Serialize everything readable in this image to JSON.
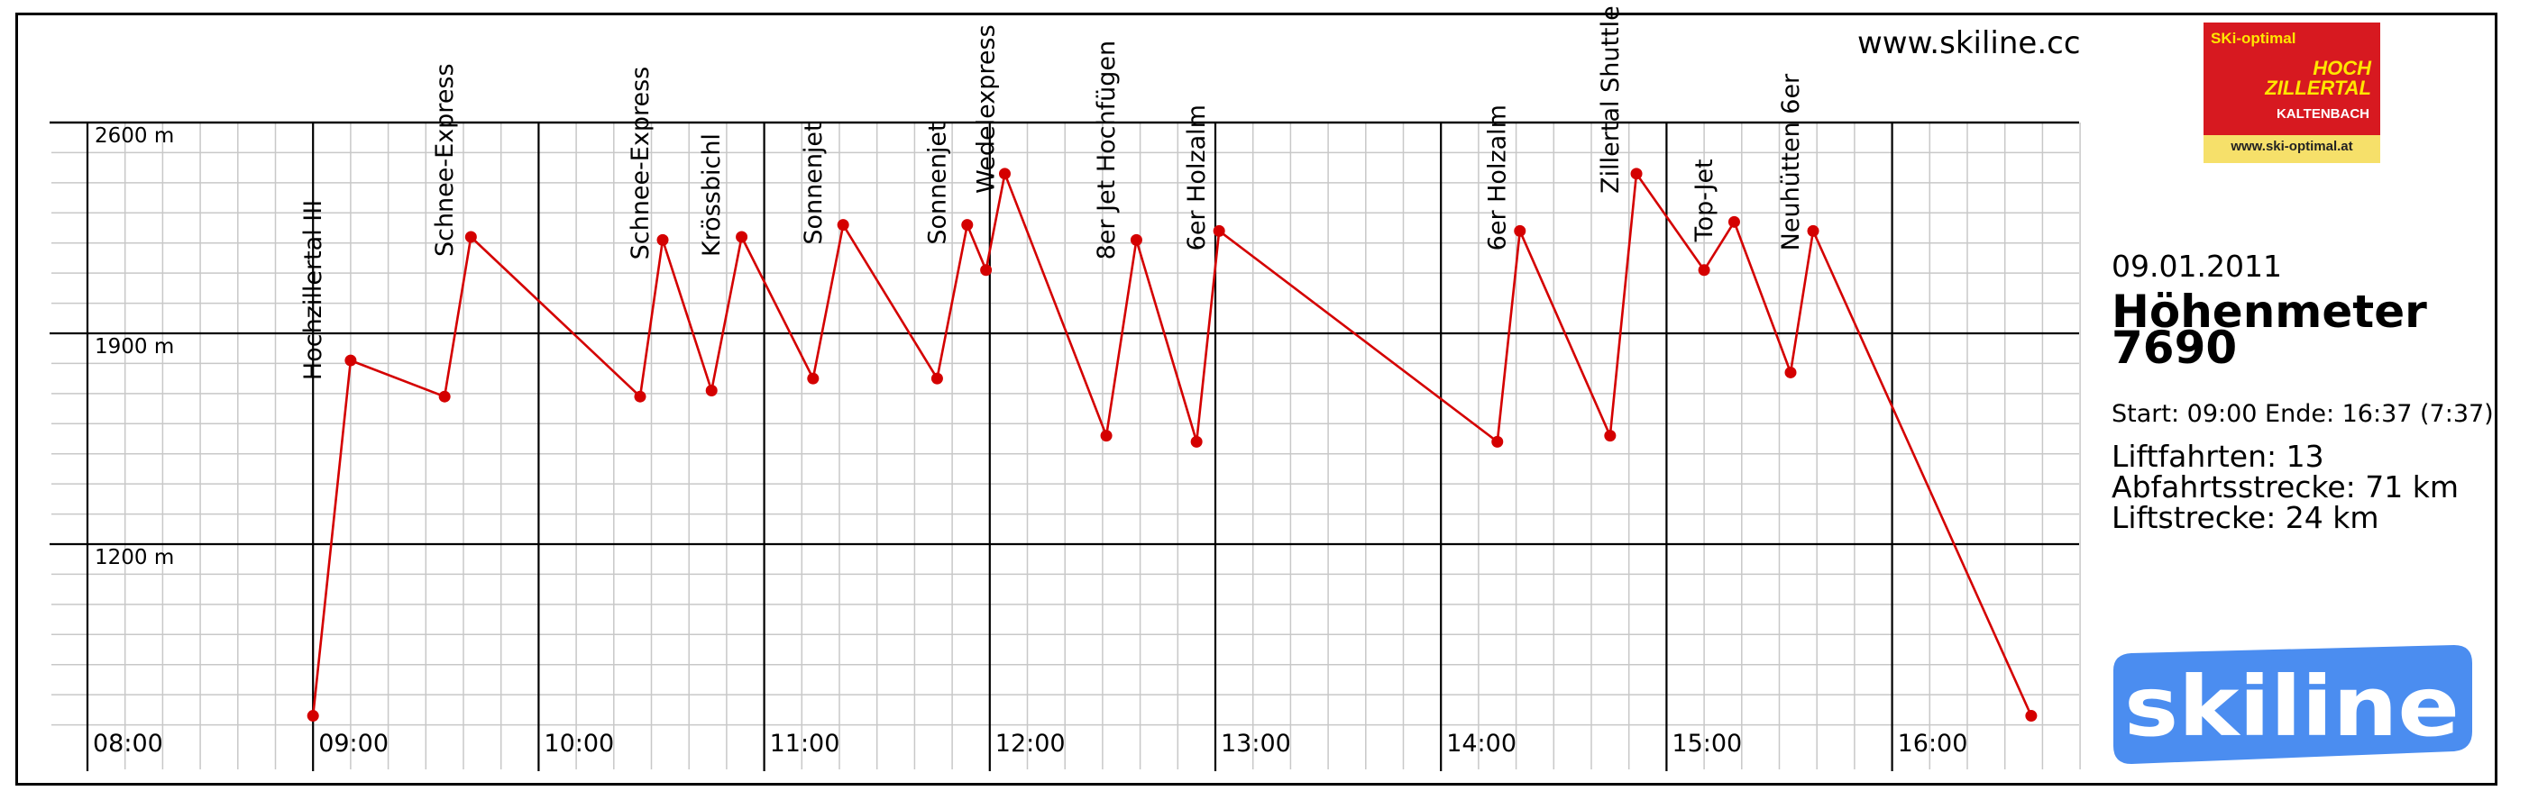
{
  "header": {
    "website": "www.skiline.cc"
  },
  "partner_logo": {
    "line1": "SKi-optimal",
    "line2": "HOCH",
    "line3": "ZILLERTAL",
    "line4": "KALTENBACH",
    "url": "www.ski-optimal.at",
    "red": "#d71920",
    "yellow_text": "#ffe600",
    "band": "#f6e06a"
  },
  "summary": {
    "date": "09.01.2011",
    "altitude_label": "Höhenmeter",
    "altitude_value": "7690",
    "start_end": "Start: 09:00 Ende: 16:37 (7:37)",
    "lift_rides": "Liftfahrten: 13",
    "downhill_distance": "Abfahrtsstrecke: 71 km",
    "lift_distance": "Liftstrecke: 24 km"
  },
  "brand_logo": {
    "text": "skiline",
    "color": "#4b8df0"
  },
  "colors": {
    "line": "#d40000",
    "grid_minor": "#c8c8c8",
    "grid_major": "#000000"
  },
  "chart_data": {
    "type": "line",
    "title": "",
    "xlabel": "",
    "ylabel": "",
    "x_ticks": [
      "08:00",
      "09:00",
      "10:00",
      "11:00",
      "12:00",
      "13:00",
      "14:00",
      "15:00",
      "16:00"
    ],
    "y_ticks": [
      "1200 m",
      "1900 m",
      "2600 m"
    ],
    "xlim": [
      "08:00",
      "16:50"
    ],
    "ylim": [
      500,
      2600
    ],
    "grid": true,
    "series": [
      {
        "name": "",
        "points": [
          {
            "x": "09:00",
            "y": 630
          },
          {
            "x": "09:10",
            "y": 1810
          },
          {
            "x": "09:35",
            "y": 1690
          },
          {
            "x": "09:42",
            "y": 2220
          },
          {
            "x": "10:27",
            "y": 1690
          },
          {
            "x": "10:33",
            "y": 2210
          },
          {
            "x": "10:46",
            "y": 1710
          },
          {
            "x": "10:54",
            "y": 2220
          },
          {
            "x": "11:13",
            "y": 1750
          },
          {
            "x": "11:21",
            "y": 2260
          },
          {
            "x": "11:46",
            "y": 1750
          },
          {
            "x": "11:54",
            "y": 2260
          },
          {
            "x": "11:59",
            "y": 2110
          },
          {
            "x": "12:04",
            "y": 2430
          },
          {
            "x": "12:31",
            "y": 1560
          },
          {
            "x": "12:39",
            "y": 2210
          },
          {
            "x": "12:55",
            "y": 1540
          },
          {
            "x": "13:01",
            "y": 2240
          },
          {
            "x": "14:15",
            "y": 1540
          },
          {
            "x": "14:21",
            "y": 2240
          },
          {
            "x": "14:45",
            "y": 1560
          },
          {
            "x": "14:52",
            "y": 2430
          },
          {
            "x": "15:10",
            "y": 2110
          },
          {
            "x": "15:18",
            "y": 2270
          },
          {
            "x": "15:33",
            "y": 1770
          },
          {
            "x": "15:39",
            "y": 2240
          },
          {
            "x": "16:37",
            "y": 630
          }
        ]
      }
    ],
    "annotations": [
      {
        "text": "Hochzillertal III",
        "x": "09:00"
      },
      {
        "text": "Schnee-Express",
        "x": "09:35"
      },
      {
        "text": "Schnee-Express",
        "x": "10:27"
      },
      {
        "text": "Krössbichl",
        "x": "10:46"
      },
      {
        "text": "Sonnenjet",
        "x": "11:13"
      },
      {
        "text": "Sonnenjet",
        "x": "11:46"
      },
      {
        "text": "Wedelexpress",
        "x": "11:59"
      },
      {
        "text": "8er Jet Hochfügen",
        "x": "12:31"
      },
      {
        "text": "6er Holzalm",
        "x": "12:55"
      },
      {
        "text": "6er Holzalm",
        "x": "14:15"
      },
      {
        "text": "Zillertal Shuttle",
        "x": "14:45"
      },
      {
        "text": "Top-Jet",
        "x": "15:10"
      },
      {
        "text": "Neuhütten 6er",
        "x": "15:33"
      }
    ]
  }
}
